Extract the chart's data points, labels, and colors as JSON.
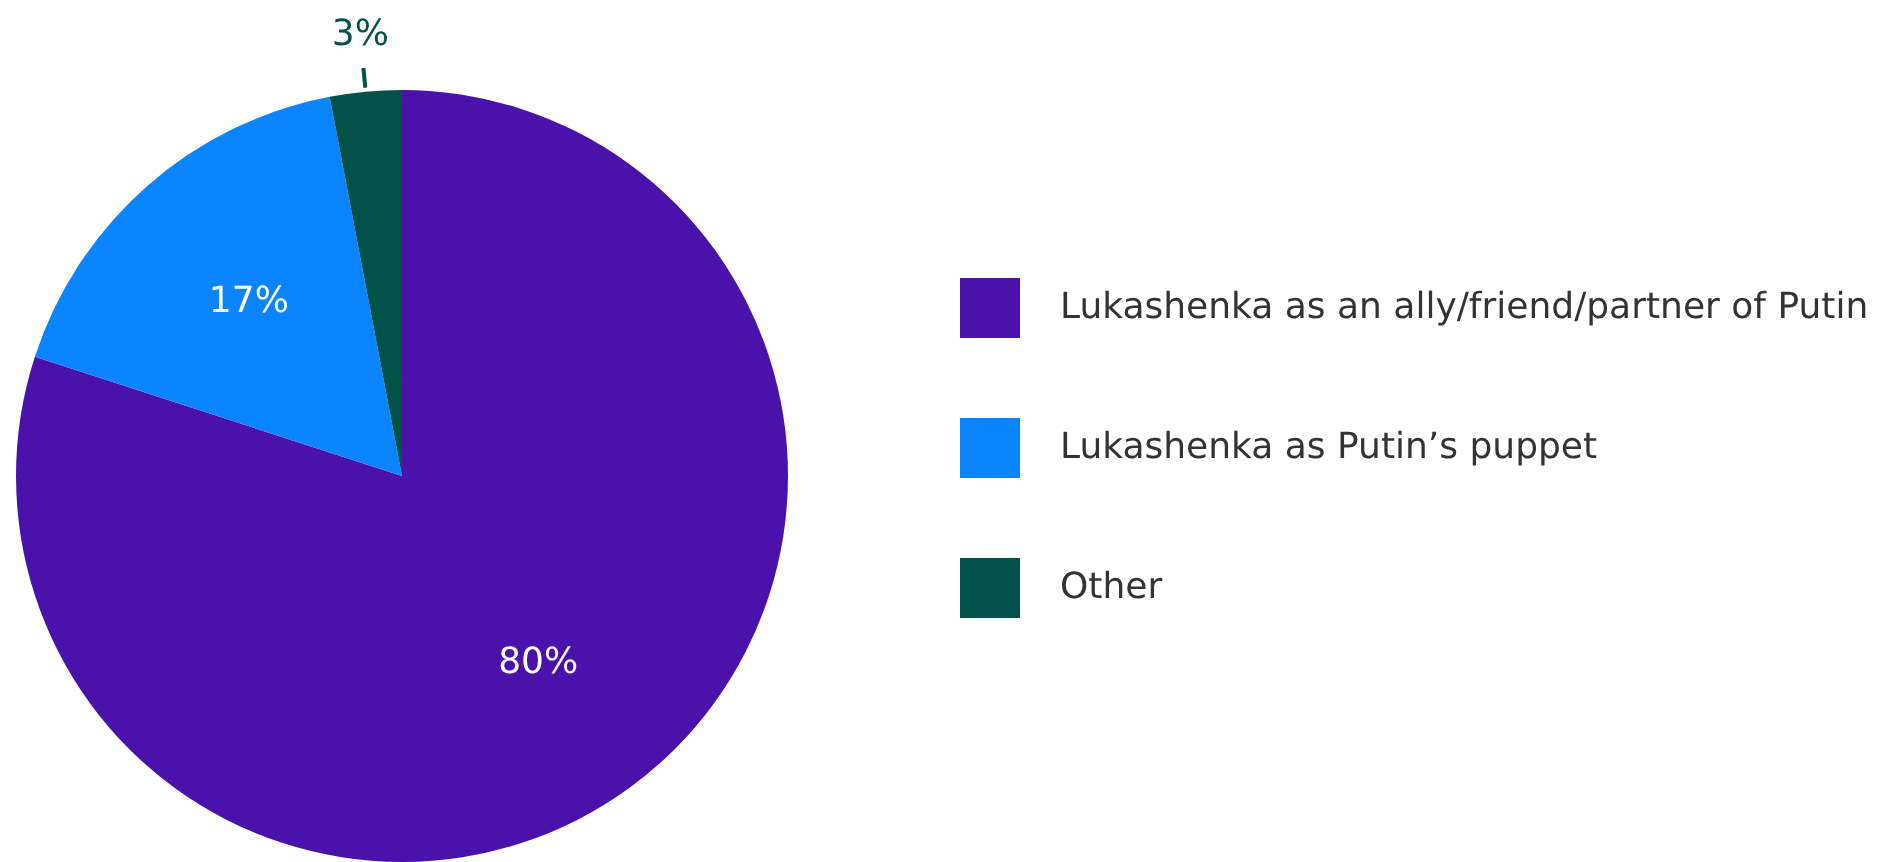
{
  "chart_data": {
    "type": "pie",
    "categories": [
      "Lukashenka as an ally/friend/partner of Putin",
      "Lukashenka as Putin’s puppet",
      "Other"
    ],
    "values": [
      80,
      17,
      3
    ],
    "colors": [
      "#4a12ab",
      "#0a84ff",
      "#02524a"
    ],
    "value_labels": [
      "80%",
      "17%",
      "3%"
    ],
    "legend": "right"
  }
}
